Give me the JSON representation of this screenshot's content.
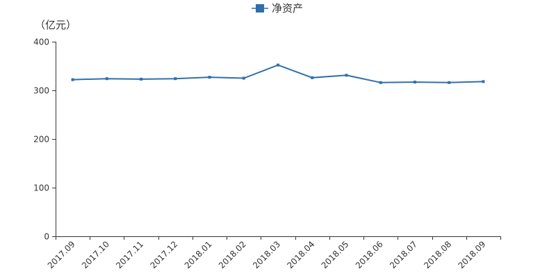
{
  "chart_data": {
    "type": "line",
    "title": "",
    "xlabel": "",
    "ylabel": "（亿元）",
    "ylim": [
      0,
      400
    ],
    "yticks": [
      0,
      100,
      200,
      300,
      400
    ],
    "grid": false,
    "legend": "top-center",
    "categories": [
      "2017.09",
      "2017.10",
      "2017.11",
      "2017.12",
      "2018.01",
      "2018.02",
      "2018.03",
      "2018.04",
      "2018.05",
      "2018.06",
      "2018.07",
      "2018.08",
      "2018.09"
    ],
    "series": [
      {
        "name": "净资产",
        "color": "#2f6fad",
        "values": [
          322,
          324,
          323,
          324,
          327,
          325,
          352,
          326,
          331,
          316,
          317,
          316,
          318
        ]
      }
    ]
  }
}
